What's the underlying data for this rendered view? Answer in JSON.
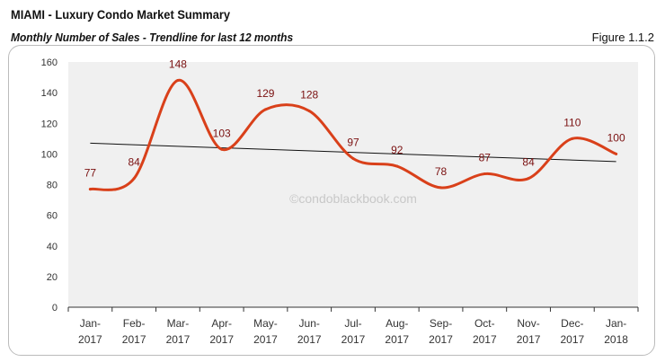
{
  "header": {
    "title": "MIAMI - Luxury Condo Market Summary",
    "subtitle": "Monthly Number of Sales - Trendline for last 12 months",
    "figure": "Figure 1.1.2"
  },
  "watermark": "©condoblackbook.com",
  "chart_data": {
    "type": "line",
    "categories": [
      "Jan-2017",
      "Feb-2017",
      "Mar-2017",
      "Apr-2017",
      "May-2017",
      "Jun-2017",
      "Jul-2017",
      "Aug-2017",
      "Sep-2017",
      "Oct-2017",
      "Nov-2017",
      "Dec-2017",
      "Jan-2018"
    ],
    "category_lines": [
      [
        "Jan-",
        "2017"
      ],
      [
        "Feb-",
        "2017"
      ],
      [
        "Mar-",
        "2017"
      ],
      [
        "Apr-",
        "2017"
      ],
      [
        "May-",
        "2017"
      ],
      [
        "Jun-",
        "2017"
      ],
      [
        "Jul-",
        "2017"
      ],
      [
        "Aug-",
        "2017"
      ],
      [
        "Sep-",
        "2017"
      ],
      [
        "Oct-",
        "2017"
      ],
      [
        "Nov-",
        "2017"
      ],
      [
        "Dec-",
        "2017"
      ],
      [
        "Jan-",
        "2018"
      ]
    ],
    "series": [
      {
        "values": [
          77,
          84,
          148,
          103,
          129,
          128,
          97,
          92,
          78,
          87,
          84,
          110,
          100
        ],
        "color": "#d9401a",
        "smooth": true,
        "data_labels": true
      }
    ],
    "trendline": {
      "type": "linear",
      "start": 107,
      "end": 95,
      "color": "#111111"
    },
    "yticks": [
      0,
      20,
      40,
      60,
      80,
      100,
      120,
      140,
      160
    ],
    "ylim": [
      0,
      160
    ],
    "grid": false,
    "plot_background": "#f0f0f0",
    "label_color": "#7a1010"
  }
}
